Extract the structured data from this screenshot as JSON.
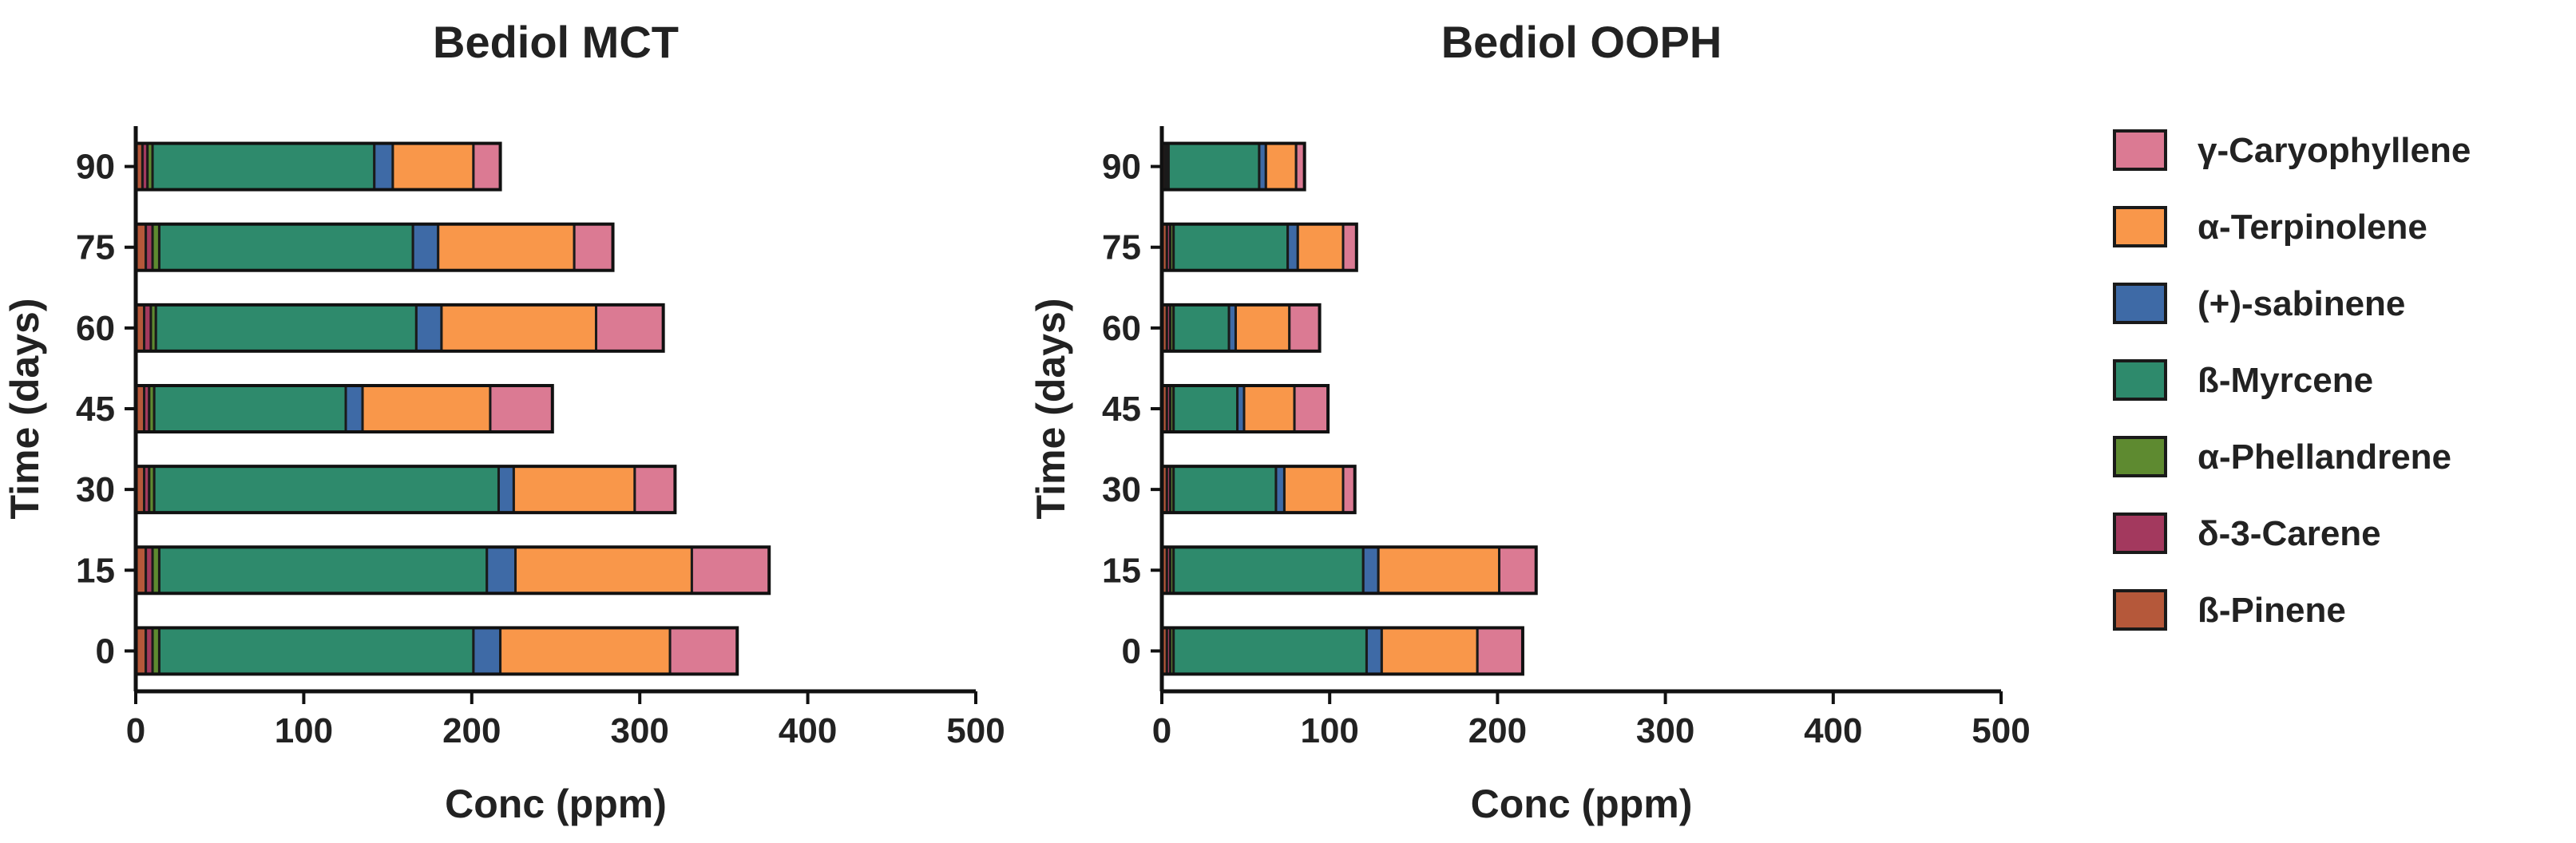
{
  "chart_data": {
    "type": "bar",
    "orientation": "horizontal",
    "stacked": true,
    "segment_order": [
      "ß-Pinene",
      "δ-3-Carene",
      "α-Phellandrene",
      "ß-Myrcene",
      "(+)-sabinene",
      "α-Terpinolene",
      "γ-Caryophyllene"
    ],
    "colors": {
      "ß-Pinene": "#b5583a",
      "δ-3-Carene": "#a3395e",
      "α-Phellandrene": "#5e8a30",
      "ß-Myrcene": "#2e8a6c",
      "(+)-sabinene": "#3e6aa6",
      "α-Terpinolene": "#f9974a",
      "γ-Caryophyllene": "#db7a93"
    },
    "legend": {
      "placement": "right",
      "entries": [
        "γ-Caryophyllene",
        "α-Terpinolene",
        "(+)-sabinene",
        "ß-Myrcene",
        "α-Phellandrene",
        "δ-3-Carene",
        "ß-Pinene"
      ]
    },
    "panels": [
      {
        "title": "Bediol MCT",
        "xlabel": "Conc (ppm)",
        "ylabel": "Time (days)",
        "xlim": [
          0,
          500
        ],
        "xticks": [
          "0",
          "100",
          "200",
          "300",
          "400",
          "500"
        ],
        "categories": [
          "0",
          "15",
          "30",
          "45",
          "60",
          "75",
          "90"
        ],
        "series": [
          {
            "name": "ß-Pinene",
            "values": [
              6,
              6,
              5,
              5,
              5,
              6,
              4
            ]
          },
          {
            "name": "δ-3-Carene",
            "values": [
              4,
              4,
              3,
              3,
              4,
              4,
              3
            ]
          },
          {
            "name": "α-Phellandrene",
            "values": [
              4,
              4,
              3,
              3,
              3,
              4,
              3
            ]
          },
          {
            "name": "ß-Myrcene",
            "values": [
              187,
              195,
              205,
              114,
              155,
              151,
              132
            ]
          },
          {
            "name": "(+)-sabinene",
            "values": [
              16,
              17,
              9,
              10,
              15,
              15,
              11
            ]
          },
          {
            "name": "α-Terpinolene",
            "values": [
              101,
              105,
              72,
              76,
              92,
              81,
              48
            ]
          },
          {
            "name": "γ-Caryophyllene",
            "values": [
              40,
              46,
              24,
              37,
              40,
              23,
              16
            ]
          }
        ]
      },
      {
        "title": "Bediol OOPH",
        "xlabel": "Conc (ppm)",
        "ylabel": "Time (days)",
        "xlim": [
          0,
          500
        ],
        "xticks": [
          "0",
          "100",
          "200",
          "300",
          "400",
          "500"
        ],
        "categories": [
          "0",
          "15",
          "30",
          "45",
          "60",
          "75",
          "90"
        ],
        "series": [
          {
            "name": "ß-Pinene",
            "values": [
              3,
              3,
              3,
              3,
              3,
              3,
              2
            ]
          },
          {
            "name": "δ-3-Carene",
            "values": [
              2,
              2,
              2,
              2,
              2,
              2,
              1
            ]
          },
          {
            "name": "α-Phellandrene",
            "values": [
              2,
              2,
              2,
              2,
              2,
              2,
              1
            ]
          },
          {
            "name": "ß-Myrcene",
            "values": [
              115,
              113,
              61,
              38,
              33,
              68,
              54
            ]
          },
          {
            "name": "(+)-sabinene",
            "values": [
              9,
              9,
              5,
              4,
              4,
              6,
              4
            ]
          },
          {
            "name": "α-Terpinolene",
            "values": [
              57,
              72,
              35,
              30,
              32,
              27,
              18
            ]
          },
          {
            "name": "γ-Caryophyllene",
            "values": [
              27,
              22,
              7,
              20,
              18,
              8,
              5
            ]
          }
        ]
      }
    ]
  }
}
